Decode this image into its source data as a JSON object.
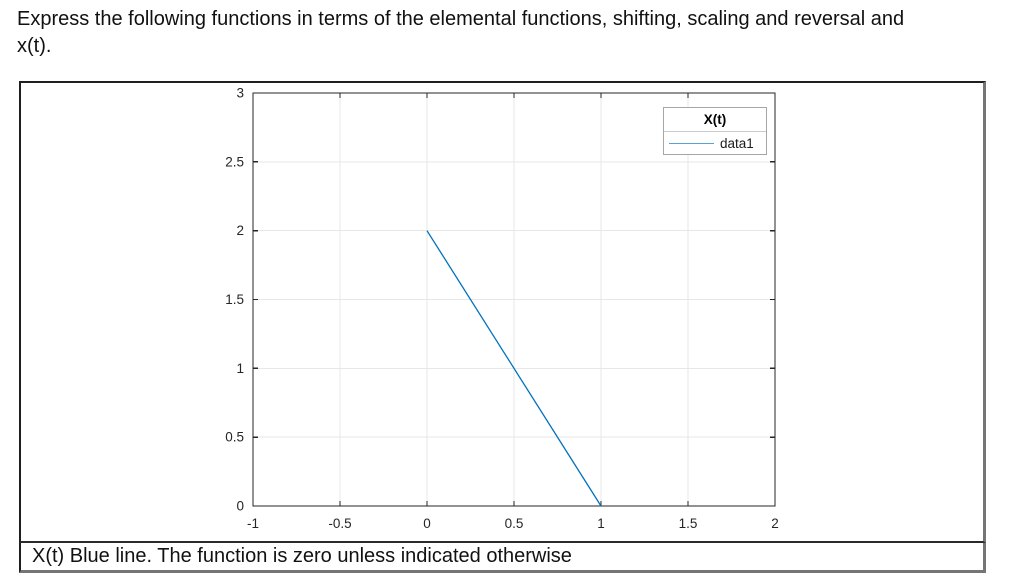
{
  "header": {
    "line1": "Express the following functions in terms of the elemental functions, shifting, scaling and reversal and",
    "line2": "x(t)."
  },
  "caption": {
    "text": "X(t) Blue line. The function is zero unless indicated otherwise"
  },
  "chart_data": {
    "type": "line",
    "title": "",
    "xlabel": "",
    "ylabel": "",
    "xlim": [
      -1,
      2
    ],
    "ylim": [
      0,
      3
    ],
    "xticks": [
      -1,
      -0.5,
      0,
      0.5,
      1,
      1.5,
      2
    ],
    "yticks": [
      0,
      0.5,
      1,
      1.5,
      2,
      2.5,
      3
    ],
    "grid": true,
    "grid_color": "#e7e7e7",
    "axis_color": "#262626",
    "series": [
      {
        "name": "data1",
        "color": "#0072BD",
        "points": [
          [
            0,
            2
          ],
          [
            1,
            0
          ]
        ]
      }
    ],
    "legend": {
      "title": "X(t)",
      "entries": [
        "data1"
      ],
      "position": "top-right"
    }
  }
}
